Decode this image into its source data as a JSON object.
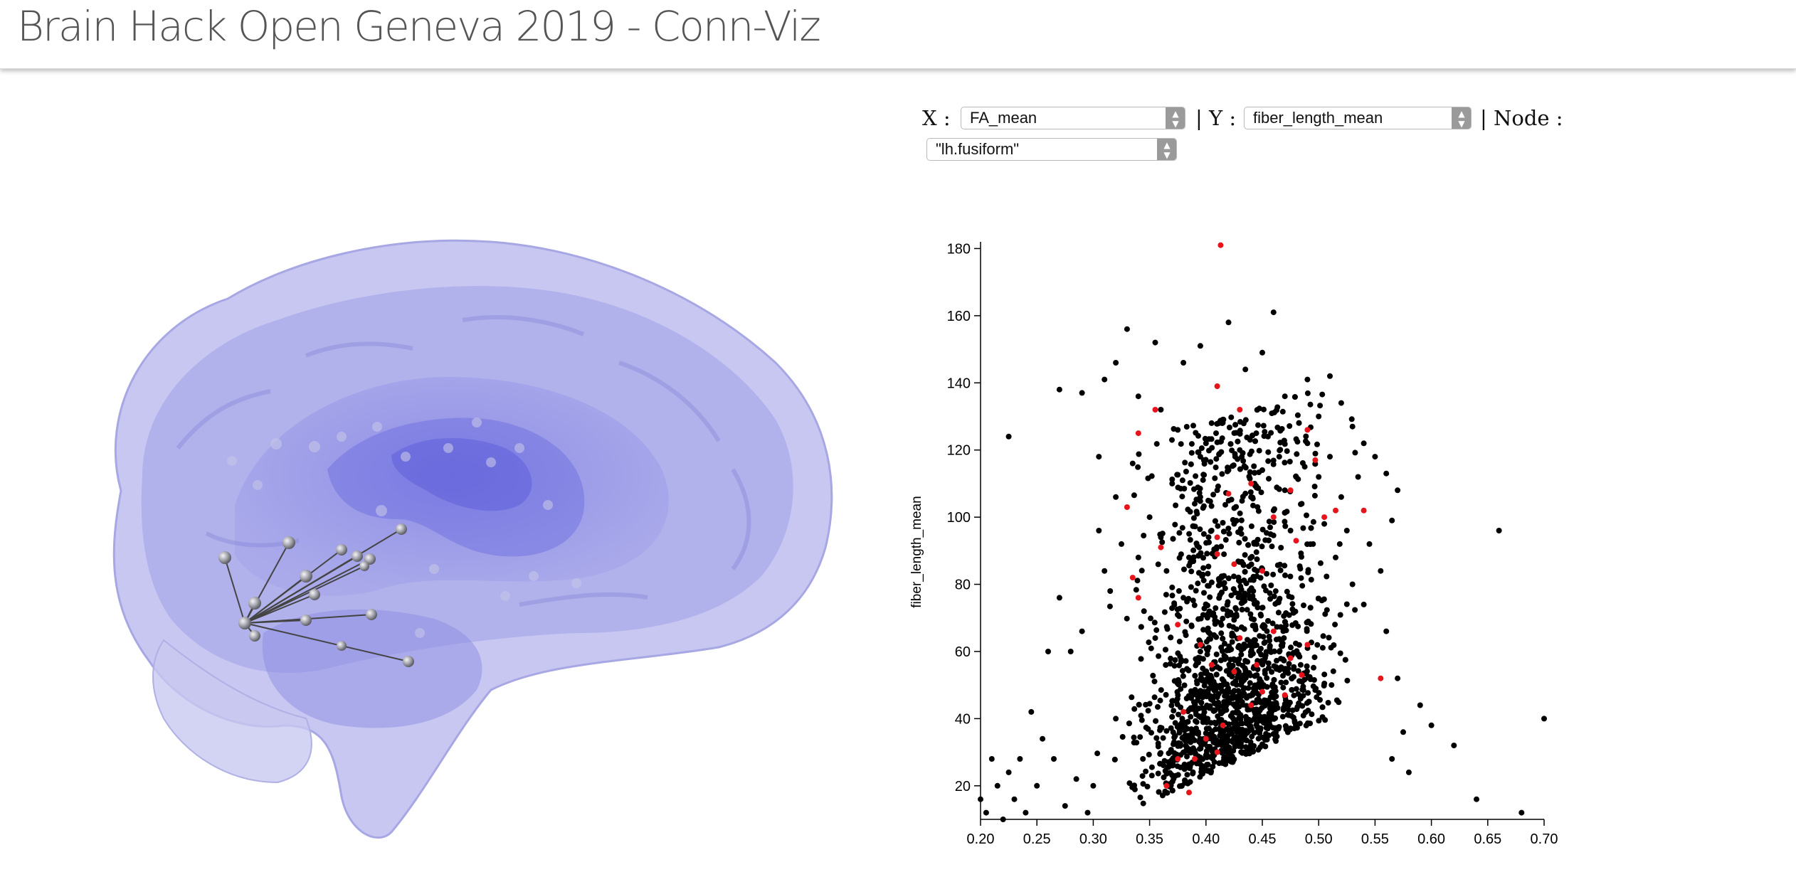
{
  "page_title": "Brain Hack Open Geneva 2019 - Conn-Viz",
  "controls": {
    "x_label": "X :",
    "x_value": "FA_mean",
    "y_label": "| Y :",
    "y_value": "fiber_length_mean",
    "node_label": "| Node :",
    "node_value": "\"lh.fusiform\"",
    "select_icon": "updown-chevron-icon"
  },
  "brain_view": {
    "colors": {
      "tissue": "#8a8ae6",
      "node": "#8f8f98",
      "edge": "#444444"
    },
    "hub_node": "lh.fusiform",
    "connected_nodes": 16
  },
  "chart_data": {
    "type": "scatter",
    "xlabel": "",
    "ylabel": "fiber_length_mean",
    "xlim": [
      0.2,
      0.7
    ],
    "ylim": [
      10,
      182
    ],
    "xticks": [
      "0.20",
      "0.25",
      "0.30",
      "0.35",
      "0.40",
      "0.45",
      "0.50",
      "0.55",
      "0.60",
      "0.65",
      "0.70"
    ],
    "yticks": [
      "20",
      "40",
      "60",
      "80",
      "100",
      "120",
      "140",
      "160",
      "180"
    ],
    "grid": false,
    "colors": {
      "all": "#000000",
      "selected": "#e8141c"
    },
    "series": [
      {
        "values": [
          [
            0.225,
            124
          ],
          [
            0.27,
            138
          ],
          [
            0.33,
            156
          ],
          [
            0.34,
            136
          ],
          [
            0.355,
            152
          ],
          [
            0.305,
            118
          ],
          [
            0.31,
            141
          ],
          [
            0.32,
            146
          ],
          [
            0.36,
            132
          ],
          [
            0.29,
            137
          ],
          [
            0.38,
            146
          ],
          [
            0.395,
            151
          ],
          [
            0.405,
            128
          ],
          [
            0.42,
            158
          ],
          [
            0.435,
            144
          ],
          [
            0.46,
            161
          ],
          [
            0.45,
            149
          ],
          [
            0.47,
            136
          ],
          [
            0.49,
            141
          ],
          [
            0.5,
            130
          ],
          [
            0.51,
            142
          ],
          [
            0.52,
            134
          ],
          [
            0.53,
            127
          ],
          [
            0.54,
            122
          ],
          [
            0.55,
            118
          ],
          [
            0.56,
            113
          ],
          [
            0.57,
            108
          ],
          [
            0.565,
            99
          ],
          [
            0.555,
            84
          ],
          [
            0.56,
            66
          ],
          [
            0.57,
            52
          ],
          [
            0.575,
            36
          ],
          [
            0.565,
            28
          ],
          [
            0.58,
            24
          ],
          [
            0.59,
            44
          ],
          [
            0.6,
            38
          ],
          [
            0.62,
            32
          ],
          [
            0.66,
            96
          ],
          [
            0.64,
            16
          ],
          [
            0.68,
            12
          ],
          [
            0.7,
            40
          ],
          [
            0.2,
            16
          ],
          [
            0.205,
            12
          ],
          [
            0.21,
            28
          ],
          [
            0.215,
            20
          ],
          [
            0.22,
            10
          ],
          [
            0.225,
            24
          ],
          [
            0.23,
            16
          ],
          [
            0.235,
            28
          ],
          [
            0.24,
            12
          ],
          [
            0.245,
            42
          ],
          [
            0.25,
            20
          ],
          [
            0.26,
            60
          ],
          [
            0.27,
            76
          ],
          [
            0.28,
            60
          ],
          [
            0.29,
            66
          ],
          [
            0.255,
            34
          ],
          [
            0.265,
            28
          ],
          [
            0.275,
            14
          ],
          [
            0.285,
            22
          ],
          [
            0.295,
            12
          ],
          [
            0.3,
            20
          ],
          [
            0.32,
            40
          ],
          [
            0.305,
            96
          ],
          [
            0.31,
            84
          ],
          [
            0.315,
            78
          ],
          [
            0.32,
            106
          ],
          [
            0.325,
            92
          ],
          [
            0.335,
            116
          ],
          [
            0.34,
            88
          ],
          [
            0.345,
            72
          ],
          [
            0.35,
            100
          ],
          [
            0.355,
            64
          ],
          [
            0.36,
            94
          ],
          [
            0.365,
            84
          ],
          [
            0.37,
            110
          ],
          [
            0.375,
            126
          ],
          [
            0.38,
            76
          ],
          [
            0.385,
            88
          ],
          [
            0.39,
            104
          ],
          [
            0.395,
            118
          ],
          [
            0.4,
            122
          ],
          [
            0.405,
            96
          ],
          [
            0.41,
            108
          ],
          [
            0.415,
            80
          ],
          [
            0.42,
            114
          ],
          [
            0.425,
            98
          ],
          [
            0.43,
            120
          ],
          [
            0.44,
            106
          ],
          [
            0.445,
            92
          ],
          [
            0.45,
            114
          ],
          [
            0.455,
            124
          ],
          [
            0.46,
            102
          ],
          [
            0.465,
            118
          ],
          [
            0.47,
            108
          ],
          [
            0.475,
            96
          ],
          [
            0.48,
            112
          ],
          [
            0.485,
            104
          ],
          [
            0.49,
            122
          ],
          [
            0.495,
            92
          ],
          [
            0.5,
            112
          ],
          [
            0.505,
            98
          ],
          [
            0.51,
            118
          ],
          [
            0.515,
            88
          ],
          [
            0.52,
            106
          ],
          [
            0.525,
            96
          ],
          [
            0.53,
            80
          ],
          [
            0.535,
            112
          ],
          [
            0.54,
            74
          ],
          [
            0.545,
            92
          ]
        ],
        "count_visible": "dense"
      },
      {
        "values": [
          [
            0.413,
            181
          ],
          [
            0.41,
            139
          ],
          [
            0.34,
            125
          ],
          [
            0.355,
            132
          ],
          [
            0.43,
            132
          ],
          [
            0.44,
            110
          ],
          [
            0.475,
            108
          ],
          [
            0.497,
            117
          ],
          [
            0.49,
            126
          ],
          [
            0.42,
            107
          ],
          [
            0.46,
            100
          ],
          [
            0.505,
            100
          ],
          [
            0.515,
            102
          ],
          [
            0.54,
            102
          ],
          [
            0.48,
            93
          ],
          [
            0.41,
            94
          ],
          [
            0.36,
            91
          ],
          [
            0.41,
            89
          ],
          [
            0.45,
            84
          ],
          [
            0.425,
            86
          ],
          [
            0.335,
            82
          ],
          [
            0.34,
            76
          ],
          [
            0.33,
            103
          ],
          [
            0.375,
            68
          ],
          [
            0.395,
            62
          ],
          [
            0.43,
            64
          ],
          [
            0.46,
            66
          ],
          [
            0.49,
            62
          ],
          [
            0.445,
            56
          ],
          [
            0.475,
            58
          ],
          [
            0.405,
            56
          ],
          [
            0.425,
            54
          ],
          [
            0.45,
            48
          ],
          [
            0.47,
            47
          ],
          [
            0.485,
            53
          ],
          [
            0.44,
            44
          ],
          [
            0.415,
            38
          ],
          [
            0.38,
            42
          ],
          [
            0.4,
            34
          ],
          [
            0.41,
            30
          ],
          [
            0.39,
            28
          ],
          [
            0.375,
            28
          ],
          [
            0.365,
            20
          ],
          [
            0.385,
            18
          ],
          [
            0.555,
            52
          ]
        ],
        "count_visible": "highlighted"
      }
    ]
  }
}
